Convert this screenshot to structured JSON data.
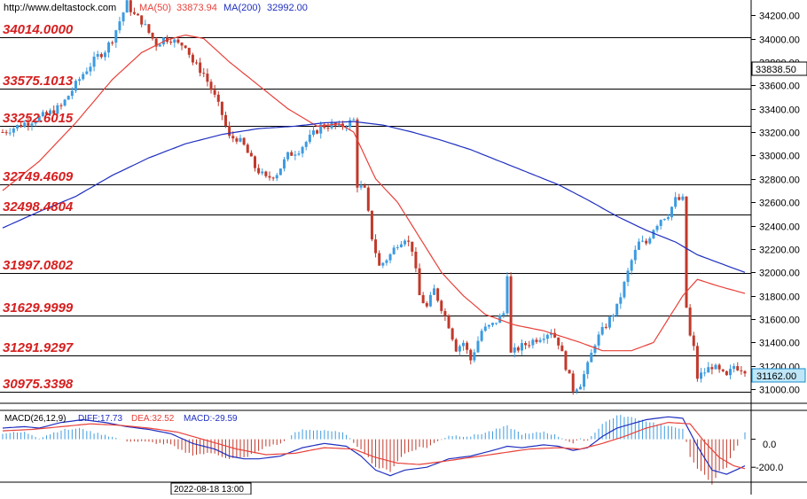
{
  "header": {
    "url": "http://www.deltastock.com",
    "ma50_label": "MA(50)",
    "ma50_value": "33873.94",
    "ma200_label": "MA(200)",
    "ma200_value": "32992.00"
  },
  "colors": {
    "up": "#3d9be0",
    "down": "#c0392b",
    "ma50": "#e8413a",
    "ma200": "#1f2fbf",
    "level_text": "#d61f1f"
  },
  "price_levels": [
    {
      "value": 34014.0,
      "label": "34014.0000"
    },
    {
      "value": 33575.1,
      "label": "33575.1013"
    },
    {
      "value": 33252.6015,
      "label": "33252.6015"
    },
    {
      "value": 32749.4609,
      "label": "32749.4609"
    },
    {
      "value": 32498.4804,
      "label": "32498.4804"
    },
    {
      "value": 31997.0802,
      "label": "31997.0802"
    },
    {
      "value": 31629.9999,
      "label": "31629.9999"
    },
    {
      "value": 31291.9297,
      "label": "31291.9297"
    },
    {
      "value": 30975.3398,
      "label": "30975.3398"
    }
  ],
  "y_ticks": [
    "34200.00",
    "34000.00",
    "33800.00",
    "33600.00",
    "33400.00",
    "33200.00",
    "33000.00",
    "32800.00",
    "32600.00",
    "32400.00",
    "32200.00",
    "32000.00",
    "31800.00",
    "31600.00",
    "31400.00",
    "31200.00",
    "31000.00"
  ],
  "current_price_top": "33838.50",
  "current_price_bottom": "31162.00",
  "macd": {
    "label": "MACD(26,12,9)",
    "diff_label": "DIFF:17.73",
    "dea_label": "DEA:32.52",
    "macd_label": "MACD:-29.59",
    "ticks": [
      "0.0",
      "-200.0"
    ]
  },
  "x_label": "2022-08-18 13:00",
  "chart_data": {
    "type": "line",
    "ylim": [
      30880,
      34330
    ],
    "anchors": [
      [
        0,
        33200
      ],
      [
        4,
        33250
      ],
      [
        8,
        33300
      ],
      [
        12,
        33350
      ],
      [
        16,
        33420
      ],
      [
        19,
        33560
      ],
      [
        22,
        33700
      ],
      [
        26,
        33850
      ],
      [
        28,
        33900
      ],
      [
        30,
        34000
      ],
      [
        32,
        34150
      ],
      [
        34,
        34300
      ],
      [
        36,
        34200
      ],
      [
        38,
        34150
      ],
      [
        40,
        34050
      ],
      [
        42,
        33950
      ],
      [
        44,
        34000
      ],
      [
        46,
        34000
      ],
      [
        48,
        33950
      ],
      [
        50,
        33950
      ],
      [
        52,
        33800
      ],
      [
        55,
        33700
      ],
      [
        58,
        33500
      ],
      [
        60,
        33350
      ],
      [
        62,
        33150
      ],
      [
        64,
        33150
      ],
      [
        66,
        33080
      ],
      [
        69,
        32900
      ],
      [
        72,
        32800
      ],
      [
        75,
        32850
      ],
      [
        78,
        33000
      ],
      [
        81,
        33050
      ],
      [
        84,
        33150
      ],
      [
        87,
        33250
      ],
      [
        90,
        33260
      ],
      [
        92,
        33240
      ],
      [
        94,
        33270
      ],
      [
        96,
        33300
      ],
      [
        97,
        32750
      ],
      [
        99,
        32700
      ],
      [
        101,
        32300
      ],
      [
        103,
        32050
      ],
      [
        106,
        32150
      ],
      [
        108,
        32250
      ],
      [
        110,
        32300
      ],
      [
        112,
        32200
      ],
      [
        114,
        31800
      ],
      [
        116,
        31700
      ],
      [
        118,
        31850
      ],
      [
        120,
        31700
      ],
      [
        122,
        31550
      ],
      [
        124,
        31350
      ],
      [
        126,
        31400
      ],
      [
        128,
        31250
      ],
      [
        131,
        31500
      ],
      [
        134,
        31550
      ],
      [
        137,
        31650
      ],
      [
        138,
        32000
      ],
      [
        139,
        31300
      ],
      [
        141,
        31350
      ],
      [
        144,
        31400
      ],
      [
        147,
        31450
      ],
      [
        150,
        31500
      ],
      [
        152,
        31400
      ],
      [
        154,
        31200
      ],
      [
        156,
        31000
      ],
      [
        158,
        31050
      ],
      [
        160,
        31200
      ],
      [
        162,
        31400
      ],
      [
        164,
        31500
      ],
      [
        166,
        31600
      ],
      [
        168,
        31700
      ],
      [
        170,
        31900
      ],
      [
        172,
        32100
      ],
      [
        174,
        32250
      ],
      [
        176,
        32250
      ],
      [
        178,
        32380
      ],
      [
        180,
        32460
      ],
      [
        182,
        32500
      ],
      [
        184,
        32620
      ],
      [
        186,
        32620
      ],
      [
        187,
        31700
      ],
      [
        188,
        31450
      ],
      [
        189,
        31350
      ],
      [
        190,
        31100
      ],
      [
        192,
        31150
      ],
      [
        194,
        31200
      ],
      [
        196,
        31150
      ],
      [
        198,
        31100
      ],
      [
        200,
        31200
      ],
      [
        203,
        31170
      ]
    ],
    "n_candles": 204,
    "ma50_anchors": [
      [
        0,
        32700
      ],
      [
        10,
        32950
      ],
      [
        20,
        33280
      ],
      [
        30,
        33650
      ],
      [
        38,
        33880
      ],
      [
        45,
        33990
      ],
      [
        50,
        34030
      ],
      [
        55,
        34000
      ],
      [
        62,
        33800
      ],
      [
        70,
        33600
      ],
      [
        78,
        33400
      ],
      [
        86,
        33250
      ],
      [
        92,
        33270
      ],
      [
        96,
        33200
      ],
      [
        102,
        32800
      ],
      [
        108,
        32600
      ],
      [
        114,
        32300
      ],
      [
        120,
        32000
      ],
      [
        126,
        31800
      ],
      [
        132,
        31640
      ],
      [
        140,
        31550
      ],
      [
        148,
        31500
      ],
      [
        158,
        31400
      ],
      [
        164,
        31330
      ],
      [
        172,
        31330
      ],
      [
        178,
        31400
      ],
      [
        186,
        31800
      ],
      [
        190,
        31940
      ],
      [
        196,
        31880
      ],
      [
        203,
        31820
      ]
    ],
    "ma200_anchors": [
      [
        0,
        32380
      ],
      [
        10,
        32520
      ],
      [
        20,
        32650
      ],
      [
        30,
        32830
      ],
      [
        40,
        32980
      ],
      [
        50,
        33100
      ],
      [
        60,
        33180
      ],
      [
        70,
        33230
      ],
      [
        80,
        33250
      ],
      [
        88,
        33280
      ],
      [
        96,
        33290
      ],
      [
        104,
        33260
      ],
      [
        112,
        33200
      ],
      [
        120,
        33130
      ],
      [
        128,
        33050
      ],
      [
        136,
        32950
      ],
      [
        144,
        32850
      ],
      [
        152,
        32750
      ],
      [
        160,
        32620
      ],
      [
        168,
        32480
      ],
      [
        176,
        32360
      ],
      [
        184,
        32260
      ],
      [
        190,
        32150
      ],
      [
        196,
        32080
      ],
      [
        203,
        32000
      ]
    ],
    "macd_diff_anchors": [
      [
        0,
        80
      ],
      [
        6,
        90
      ],
      [
        10,
        80
      ],
      [
        16,
        120
      ],
      [
        22,
        140
      ],
      [
        28,
        120
      ],
      [
        34,
        90
      ],
      [
        40,
        70
      ],
      [
        46,
        40
      ],
      [
        52,
        -30
      ],
      [
        58,
        -70
      ],
      [
        62,
        -120
      ],
      [
        66,
        -140
      ],
      [
        70,
        -140
      ],
      [
        76,
        -120
      ],
      [
        82,
        -60
      ],
      [
        88,
        -30
      ],
      [
        94,
        -50
      ],
      [
        98,
        -120
      ],
      [
        102,
        -220
      ],
      [
        106,
        -260
      ],
      [
        110,
        -220
      ],
      [
        116,
        -200
      ],
      [
        122,
        -140
      ],
      [
        128,
        -120
      ],
      [
        134,
        -80
      ],
      [
        138,
        -50
      ],
      [
        142,
        -60
      ],
      [
        148,
        -40
      ],
      [
        152,
        -50
      ],
      [
        156,
        -80
      ],
      [
        160,
        -60
      ],
      [
        164,
        20
      ],
      [
        168,
        80
      ],
      [
        172,
        110
      ],
      [
        176,
        140
      ],
      [
        182,
        160
      ],
      [
        186,
        150
      ],
      [
        190,
        -50
      ],
      [
        194,
        -220
      ],
      [
        198,
        -250
      ],
      [
        203,
        -190
      ]
    ],
    "macd_dea_anchors": [
      [
        0,
        60
      ],
      [
        8,
        70
      ],
      [
        16,
        90
      ],
      [
        24,
        110
      ],
      [
        32,
        100
      ],
      [
        40,
        80
      ],
      [
        48,
        50
      ],
      [
        56,
        -10
      ],
      [
        64,
        -70
      ],
      [
        72,
        -110
      ],
      [
        80,
        -100
      ],
      [
        88,
        -60
      ],
      [
        96,
        -70
      ],
      [
        102,
        -130
      ],
      [
        108,
        -170
      ],
      [
        114,
        -180
      ],
      [
        120,
        -160
      ],
      [
        128,
        -130
      ],
      [
        136,
        -100
      ],
      [
        144,
        -70
      ],
      [
        152,
        -60
      ],
      [
        158,
        -70
      ],
      [
        164,
        -30
      ],
      [
        170,
        20
      ],
      [
        176,
        80
      ],
      [
        182,
        120
      ],
      [
        188,
        110
      ],
      [
        192,
        -20
      ],
      [
        196,
        -130
      ],
      [
        200,
        -190
      ],
      [
        203,
        -210
      ]
    ]
  }
}
